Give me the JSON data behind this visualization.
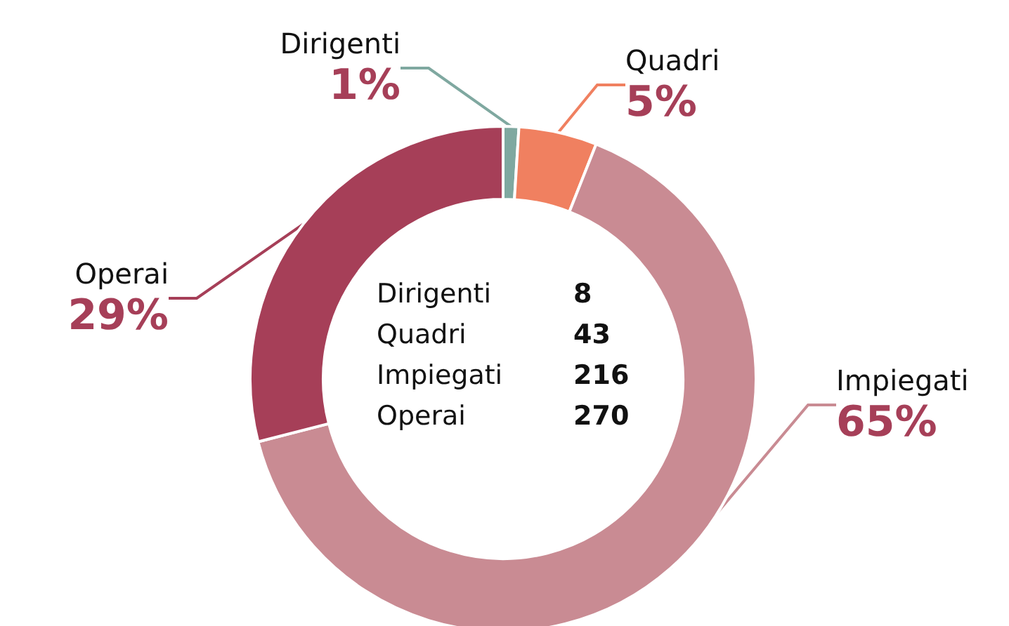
{
  "chart_data": {
    "type": "donut",
    "categories": [
      "Dirigenti",
      "Quadri",
      "Impiegati",
      "Operai"
    ],
    "values": [
      1,
      5,
      65,
      29
    ],
    "colors": [
      "#7fa8a0",
      "#f08060",
      "#c98b93",
      "#a63f58"
    ],
    "value_labels": [
      "1%",
      "5%",
      "65%",
      "29%"
    ],
    "annotations": [
      "Dirigenti",
      "8",
      "Quadri",
      "43",
      "Impiegati",
      "216",
      "Operai",
      "270"
    ]
  }
}
